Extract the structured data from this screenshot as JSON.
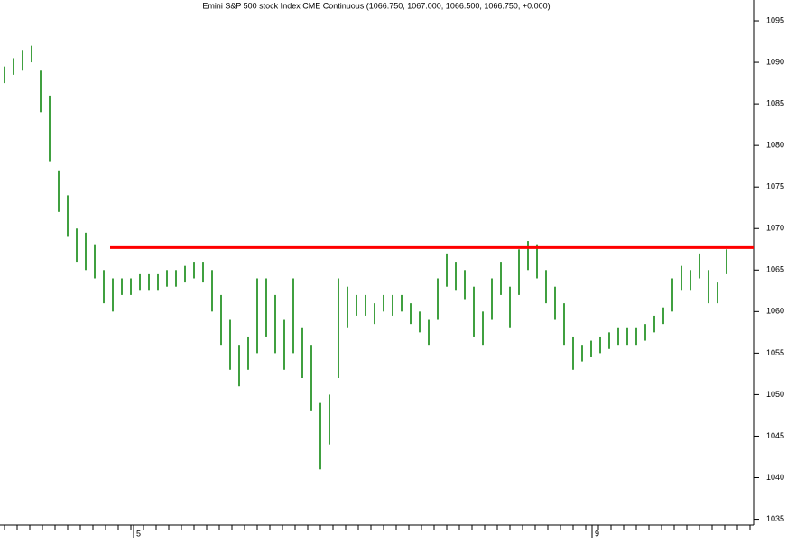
{
  "chart_data": {
    "type": "hilo",
    "title": "Emini S&P 500 stock Index CME Continuous (1066.750, 1067.000, 1066.500, 1066.750, +0.000)",
    "color": "#008000",
    "series": [
      {
        "name": "high",
        "values": [
          1089.5,
          1090.5,
          1091.5,
          1092,
          1089,
          1086,
          1077,
          1074,
          1070,
          1069.5,
          1068,
          1065,
          1064,
          1064,
          1064,
          1064.5,
          1064.5,
          1064.5,
          1065,
          1065,
          1065.5,
          1066,
          1066,
          1065,
          1062,
          1059,
          1056,
          1057,
          1064,
          1064,
          1062,
          1059,
          1064,
          1058,
          1056,
          1049,
          1050,
          1064,
          1063,
          1062,
          1062,
          1061,
          1062,
          1062,
          1062,
          1061,
          1060,
          1059,
          1064,
          1067,
          1066,
          1065,
          1063,
          1060,
          1064,
          1066,
          1063,
          1067.5,
          1068.5,
          1068,
          1065,
          1063,
          1061,
          1057,
          1056,
          1056.5,
          1057,
          1057.5,
          1058,
          1058,
          1058,
          1058.5,
          1059.5,
          1060.5,
          1064,
          1065.5,
          1065,
          1067,
          1065,
          1063.5,
          1067.5
        ]
      },
      {
        "name": "low",
        "values": [
          1087.5,
          1088.5,
          1089,
          1090,
          1084,
          1078,
          1072,
          1069,
          1066,
          1065,
          1064,
          1061,
          1060,
          1062,
          1062,
          1062.5,
          1062.5,
          1062.5,
          1063,
          1063,
          1063.5,
          1064,
          1063.5,
          1060,
          1056,
          1053,
          1051,
          1053,
          1055,
          1057,
          1055,
          1053,
          1055,
          1052,
          1048,
          1041,
          1044,
          1052,
          1058,
          1059.5,
          1059.5,
          1058.5,
          1060,
          1059.5,
          1060,
          1058.5,
          1057.5,
          1056,
          1059,
          1063,
          1062.5,
          1061.5,
          1057,
          1056,
          1059,
          1062,
          1058,
          1062,
          1065,
          1064,
          1061,
          1059,
          1056,
          1053,
          1054,
          1054.5,
          1055,
          1055.5,
          1056,
          1056,
          1056,
          1056.5,
          1057.5,
          1058.5,
          1060,
          1062.5,
          1062.5,
          1064,
          1061,
          1061,
          1064.5
        ]
      }
    ],
    "xlim": [
      -0.5,
      83
    ],
    "xticks": [
      {
        "value": 14.3,
        "label": "5"
      },
      {
        "value": 65.1,
        "label": "9"
      }
    ],
    "ylim": [
      1034.3,
      1097.5
    ],
    "yticks": [
      1035,
      1040,
      1045,
      1050,
      1055,
      1060,
      1065,
      1070,
      1075,
      1080,
      1085,
      1090,
      1095
    ],
    "resistance": {
      "y": 1067.7,
      "x_start": 11.7,
      "color": "#ff0000"
    }
  }
}
